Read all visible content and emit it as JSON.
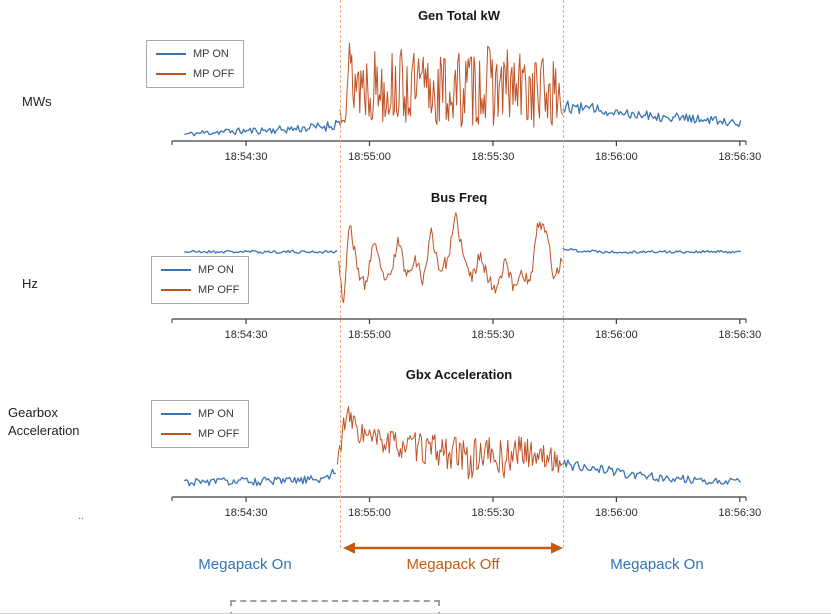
{
  "colors": {
    "mp_on": "#3a74b4",
    "mp_off": "#bf5226",
    "dashed_guide": "#edaa83",
    "arrow": "#c55a11",
    "label_on": "#2e75b6",
    "label_off": "#c55a11",
    "axis": "#3f3f3f",
    "tick_text": "#2b2b2b"
  },
  "row_labels": [
    "MWs",
    "Hz",
    "Gearbox\nAcceleration"
  ],
  "legend": {
    "items": [
      {
        "label": "MP ON"
      },
      {
        "label": "MP OFF"
      }
    ]
  },
  "annotations": {
    "left": "Megapack On",
    "middle": "Megapack Off",
    "right": "Megapack On"
  },
  "artifact_dots": "..",
  "mp_off_window_seconds_after_185400": [
    53,
    107
  ],
  "chart_data": [
    {
      "type": "line",
      "title": "Gen Total kW",
      "ylabel": "MWs",
      "grid": false,
      "legend_entries": [
        "MP ON",
        "MP OFF"
      ],
      "legend_position": "upper left",
      "y_axis_ticks": "none shown (values normalized 0-1 of panel height)",
      "x_reference": "seconds after 18:54:00",
      "xlim_seconds": [
        12,
        151.5
      ],
      "x_tick_seconds": [
        30,
        60,
        90,
        120,
        150
      ],
      "x_tick_labels": [
        "18:54:30",
        "18:55:00",
        "18:55:30",
        "18:56:00",
        "18:56:30"
      ],
      "series": [
        {
          "name": "MP ON",
          "color": "mp_on",
          "segments": [
            {
              "seed": 11,
              "step": 0.4,
              "keyframes": [
                [
                  15,
                  0.06,
                  0.02
                ],
                [
                  22,
                  0.08,
                  0.03
                ],
                [
                  30,
                  0.09,
                  0.03
                ],
                [
                  38,
                  0.1,
                  0.035
                ],
                [
                  46,
                  0.12,
                  0.04
                ],
                [
                  51,
                  0.14,
                  0.05
                ],
                [
                  53,
                  0.18,
                  0.06
                ]
              ]
            },
            {
              "seed": 12,
              "step": 0.4,
              "keyframes": [
                [
                  107,
                  0.31,
                  0.06
                ],
                [
                  113,
                  0.29,
                  0.05
                ],
                [
                  121,
                  0.26,
                  0.05
                ],
                [
                  131,
                  0.22,
                  0.045
                ],
                [
                  141,
                  0.19,
                  0.04
                ],
                [
                  150.5,
                  0.16,
                  0.035
                ]
              ]
            }
          ]
        },
        {
          "name": "MP OFF",
          "color": "mp_off",
          "segments": [
            {
              "seed": 13,
              "step": 0.28,
              "keyframes": [
                [
                  52.6,
                  0.25,
                  0.18
                ],
                [
                  53.5,
                  0.55,
                  0.4
                ],
                [
                  55,
                  0.58,
                  0.4
                ],
                [
                  58,
                  0.52,
                  0.36
                ],
                [
                  64,
                  0.5,
                  0.34
                ],
                [
                  72,
                  0.46,
                  0.34
                ],
                [
                  80,
                  0.44,
                  0.36
                ],
                [
                  88,
                  0.5,
                  0.36
                ],
                [
                  96,
                  0.46,
                  0.35
                ],
                [
                  102,
                  0.44,
                  0.34
                ],
                [
                  106,
                  0.4,
                  0.3
                ],
                [
                  107,
                  0.34,
                  0.18
                ]
              ]
            }
          ]
        }
      ]
    },
    {
      "type": "line",
      "title": "Bus Freq",
      "ylabel": "Hz",
      "grid": false,
      "legend_entries": [
        "MP ON",
        "MP OFF"
      ],
      "legend_position": "center left",
      "y_axis_ticks": "none shown (values normalized 0-1 of panel height)",
      "x_reference": "seconds after 18:54:00",
      "xlim_seconds": [
        12,
        151.5
      ],
      "x_tick_seconds": [
        30,
        60,
        90,
        120,
        150
      ],
      "x_tick_labels": [
        "18:54:30",
        "18:55:00",
        "18:55:30",
        "18:56:00",
        "18:56:30"
      ],
      "series": [
        {
          "name": "MP ON",
          "color": "mp_on",
          "segments": [
            {
              "seed": 21,
              "step": 0.4,
              "keyframes": [
                [
                  15,
                  0.6,
                  0.012
                ],
                [
                  30,
                  0.6,
                  0.013
                ],
                [
                  45,
                  0.6,
                  0.013
                ],
                [
                  52.5,
                  0.6,
                  0.015
                ]
              ]
            },
            {
              "seed": 22,
              "step": 0.4,
              "keyframes": [
                [
                  107,
                  0.63,
                  0.015
                ],
                [
                  111,
                  0.61,
                  0.014
                ],
                [
                  118,
                  0.6,
                  0.013
                ],
                [
                  150.5,
                  0.6,
                  0.013
                ]
              ]
            }
          ]
        },
        {
          "name": "MP OFF",
          "color": "mp_off",
          "segments": [
            {
              "seed": 23,
              "step": 0.3,
              "keyframes": [
                [
                  52.5,
                  0.55,
                  0.04
                ],
                [
                  53.6,
                  0.12,
                  0.06
                ],
                [
                  55.2,
                  0.88,
                  0.05
                ],
                [
                  57,
                  0.45,
                  0.06
                ],
                [
                  59,
                  0.28,
                  0.06
                ],
                [
                  61,
                  0.7,
                  0.05
                ],
                [
                  63,
                  0.4,
                  0.06
                ],
                [
                  65,
                  0.34,
                  0.06
                ],
                [
                  67,
                  0.72,
                  0.05
                ],
                [
                  69,
                  0.38,
                  0.06
                ],
                [
                  71,
                  0.56,
                  0.06
                ],
                [
                  73,
                  0.33,
                  0.06
                ],
                [
                  75,
                  0.78,
                  0.05
                ],
                [
                  77,
                  0.44,
                  0.06
                ],
                [
                  79,
                  0.52,
                  0.06
                ],
                [
                  81,
                  0.92,
                  0.05
                ],
                [
                  83,
                  0.52,
                  0.06
                ],
                [
                  85,
                  0.36,
                  0.06
                ],
                [
                  87,
                  0.6,
                  0.06
                ],
                [
                  89,
                  0.33,
                  0.07
                ],
                [
                  91,
                  0.28,
                  0.07
                ],
                [
                  93,
                  0.55,
                  0.06
                ],
                [
                  95,
                  0.26,
                  0.07
                ],
                [
                  97,
                  0.44,
                  0.07
                ],
                [
                  99,
                  0.3,
                  0.07
                ],
                [
                  101,
                  0.86,
                  0.05
                ],
                [
                  103,
                  0.78,
                  0.06
                ],
                [
                  105,
                  0.34,
                  0.06
                ],
                [
                  107,
                  0.56,
                  0.05
                ]
              ]
            }
          ]
        }
      ]
    },
    {
      "type": "line",
      "title": "Gbx Acceleration",
      "ylabel": "Gearbox Acceleration",
      "grid": false,
      "legend_entries": [
        "MP ON",
        "MP OFF"
      ],
      "legend_position": "upper left",
      "y_axis_ticks": "none shown (values normalized 0-1 of panel height)",
      "x_reference": "seconds after 18:54:00",
      "xlim_seconds": [
        12,
        151.5
      ],
      "x_tick_seconds": [
        30,
        60,
        90,
        120,
        150
      ],
      "x_tick_labels": [
        "18:54:30",
        "18:55:00",
        "18:55:30",
        "18:56:00",
        "18:56:30"
      ],
      "series": [
        {
          "name": "MP ON",
          "color": "mp_on",
          "segments": [
            {
              "seed": 31,
              "step": 0.4,
              "keyframes": [
                [
                  15,
                  0.13,
                  0.035
                ],
                [
                  25,
                  0.14,
                  0.035
                ],
                [
                  40,
                  0.14,
                  0.04
                ],
                [
                  48,
                  0.16,
                  0.04
                ],
                [
                  52,
                  0.22,
                  0.06
                ]
              ]
            },
            {
              "seed": 32,
              "step": 0.4,
              "keyframes": [
                [
                  107,
                  0.3,
                  0.05
                ],
                [
                  112,
                  0.27,
                  0.05
                ],
                [
                  120,
                  0.22,
                  0.04
                ],
                [
                  130,
                  0.17,
                  0.04
                ],
                [
                  140,
                  0.15,
                  0.035
                ],
                [
                  150.5,
                  0.14,
                  0.03
                ]
              ]
            }
          ]
        },
        {
          "name": "MP OFF",
          "color": "mp_off",
          "segments": [
            {
              "seed": 33,
              "step": 0.3,
              "keyframes": [
                [
                  52.2,
                  0.28,
                  0.1
                ],
                [
                  53.5,
                  0.62,
                  0.12
                ],
                [
                  55,
                  0.72,
                  0.1
                ],
                [
                  57,
                  0.6,
                  0.12
                ],
                [
                  60,
                  0.52,
                  0.12
                ],
                [
                  65,
                  0.48,
                  0.13
                ],
                [
                  70,
                  0.45,
                  0.13
                ],
                [
                  75,
                  0.42,
                  0.14
                ],
                [
                  80,
                  0.4,
                  0.16
                ],
                [
                  84,
                  0.32,
                  0.18
                ],
                [
                  88,
                  0.4,
                  0.15
                ],
                [
                  92,
                  0.32,
                  0.2
                ],
                [
                  96,
                  0.42,
                  0.13
                ],
                [
                  100,
                  0.38,
                  0.12
                ],
                [
                  103,
                  0.35,
                  0.11
                ],
                [
                  106.8,
                  0.3,
                  0.09
                ]
              ]
            }
          ]
        }
      ]
    }
  ]
}
